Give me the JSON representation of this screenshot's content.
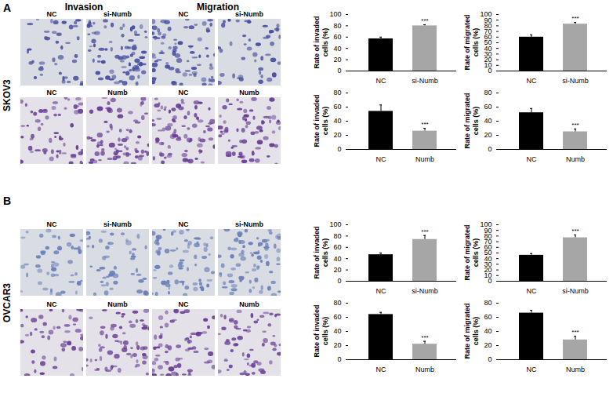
{
  "column_titles": [
    "Invasion",
    "Migration"
  ],
  "panels": [
    {
      "label": "A",
      "cell_line": "SKOV3",
      "image_rows": [
        [
          "NC",
          "si-Numb",
          "NC",
          "si-Numb"
        ],
        [
          "NC",
          "Numb",
          "NC",
          "Numb"
        ]
      ]
    },
    {
      "label": "B",
      "cell_line": "OVCAR3",
      "image_rows": [
        [
          "NC",
          "si-Numb",
          "NC",
          "si-Numb"
        ],
        [
          "NC",
          "Numb",
          "NC",
          "Numb"
        ]
      ]
    }
  ],
  "chart_data": [
    {
      "type": "bar",
      "y_label": "Rate of invaded cells (%)",
      "categories": [
        "NC",
        "si-Numb"
      ],
      "values": [
        57,
        80
      ],
      "errors": [
        3,
        2
      ],
      "colors": [
        "#000000",
        "#a6a6a6"
      ],
      "ylim": [
        0,
        100
      ],
      "yticks": [
        0,
        20,
        40,
        60,
        80,
        100
      ],
      "annotations": [
        {
          "category": "si-Numb",
          "text": "***"
        }
      ]
    },
    {
      "type": "bar",
      "y_label": "Rate of migrated cells (%)",
      "categories": [
        "NC",
        "si-Numb"
      ],
      "values": [
        60,
        83
      ],
      "errors": [
        4,
        3
      ],
      "colors": [
        "#000000",
        "#a6a6a6"
      ],
      "ylim": [
        0,
        100
      ],
      "yticks": [
        0,
        10,
        20,
        30,
        40,
        50,
        60,
        70,
        80,
        90,
        100
      ],
      "annotations": [
        {
          "category": "si-Numb",
          "text": "***"
        }
      ]
    },
    {
      "type": "bar",
      "y_label": "Rate of invaded cells (%)",
      "categories": [
        "NC",
        "Numb"
      ],
      "values": [
        54,
        26
      ],
      "errors": [
        9,
        4
      ],
      "colors": [
        "#000000",
        "#a6a6a6"
      ],
      "ylim": [
        0,
        80
      ],
      "yticks": [
        0,
        20,
        40,
        60,
        80
      ],
      "annotations": [
        {
          "category": "Numb",
          "text": "***"
        }
      ]
    },
    {
      "type": "bar",
      "y_label": "Rate of migrated cells (%)",
      "categories": [
        "NC",
        "Numb"
      ],
      "values": [
        52,
        25
      ],
      "errors": [
        6,
        4
      ],
      "colors": [
        "#000000",
        "#a6a6a6"
      ],
      "ylim": [
        0,
        80
      ],
      "yticks": [
        0,
        20,
        40,
        60,
        80
      ],
      "annotations": [
        {
          "category": "Numb",
          "text": "***"
        }
      ]
    },
    {
      "type": "bar",
      "y_label": "Rate of invaded cells (%)",
      "categories": [
        "NC",
        "si-Numb"
      ],
      "values": [
        47,
        74
      ],
      "errors": [
        3,
        7
      ],
      "colors": [
        "#000000",
        "#a6a6a6"
      ],
      "ylim": [
        0,
        100
      ],
      "yticks": [
        0,
        20,
        40,
        60,
        80,
        100
      ],
      "annotations": [
        {
          "category": "si-Numb",
          "text": "***"
        }
      ]
    },
    {
      "type": "bar",
      "y_label": "Rate of migrated cells (%)",
      "categories": [
        "NC",
        "si-Numb"
      ],
      "values": [
        46,
        77
      ],
      "errors": [
        3,
        5
      ],
      "colors": [
        "#000000",
        "#a6a6a6"
      ],
      "ylim": [
        0,
        100
      ],
      "yticks": [
        0,
        10,
        20,
        30,
        40,
        50,
        60,
        70,
        80,
        90,
        100
      ],
      "annotations": [
        {
          "category": "si-Numb",
          "text": "***"
        }
      ]
    },
    {
      "type": "bar",
      "y_label": "Rate of invaded cells (%)",
      "categories": [
        "NC",
        "Numb"
      ],
      "values": [
        64,
        22
      ],
      "errors": [
        3,
        4
      ],
      "colors": [
        "#000000",
        "#a6a6a6"
      ],
      "ylim": [
        0,
        80
      ],
      "yticks": [
        0,
        20,
        40,
        60,
        80
      ],
      "annotations": [
        {
          "category": "Numb",
          "text": "***"
        }
      ]
    },
    {
      "type": "bar",
      "y_label": "Rate of migrated cells (%)",
      "categories": [
        "NC",
        "Numb"
      ],
      "values": [
        66,
        28
      ],
      "errors": [
        4,
        5
      ],
      "colors": [
        "#000000",
        "#a6a6a6"
      ],
      "ylim": [
        0,
        80
      ],
      "yticks": [
        0,
        20,
        40,
        60,
        80
      ],
      "annotations": [
        {
          "category": "Numb",
          "text": "***"
        }
      ]
    }
  ]
}
